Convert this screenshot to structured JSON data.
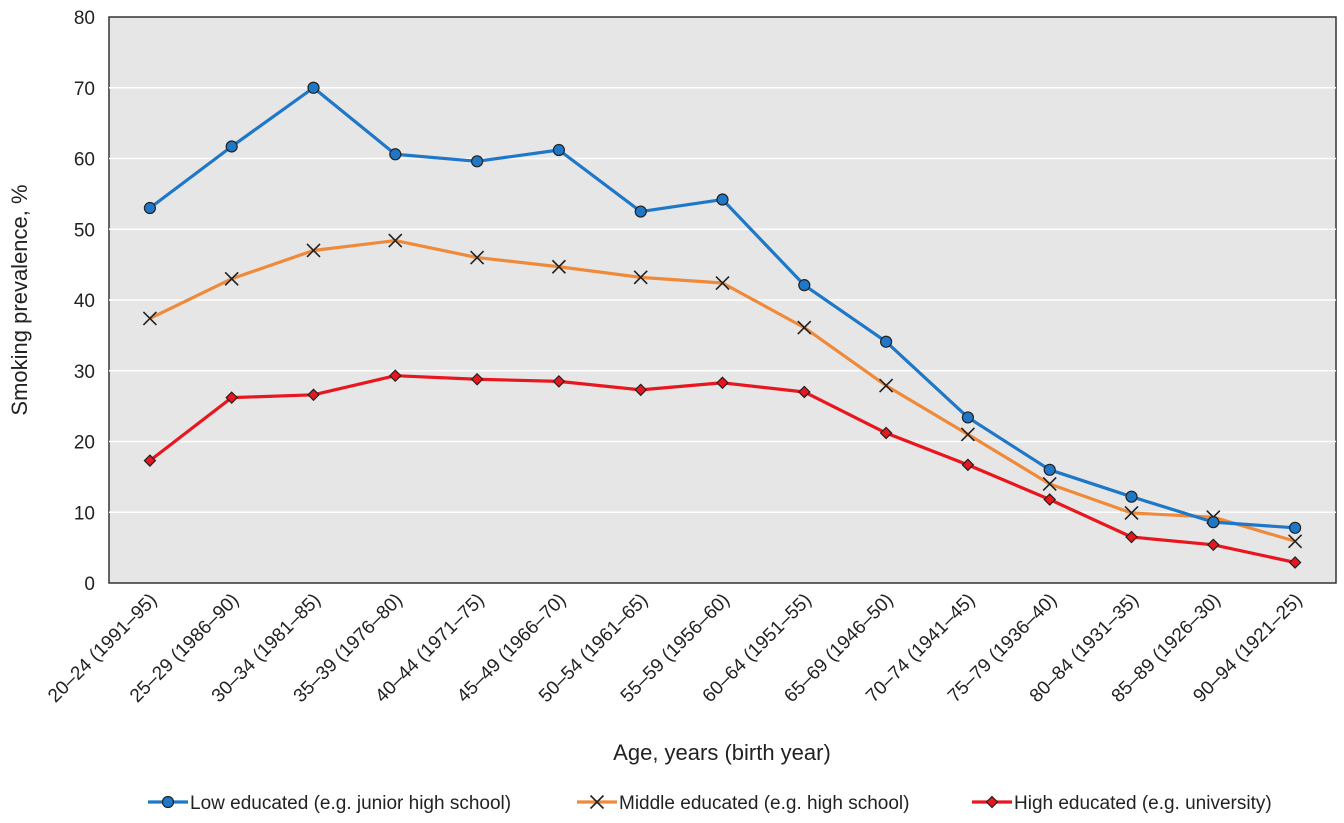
{
  "chart_data": {
    "type": "line",
    "xlabel": "Age, years (birth year)",
    "ylabel": "Smoking prevalence, %",
    "ylim": [
      0,
      80
    ],
    "yticks": [
      0,
      10,
      20,
      30,
      40,
      50,
      60,
      70,
      80
    ],
    "grid": true,
    "legend_position": "bottom",
    "plot_background": "#e6e6e6",
    "categories": [
      "20–24 (1991–95)",
      "25–29 (1986–90)",
      "30–34 (1981–85)",
      "35–39 (1976–80)",
      "40–44 (1971–75)",
      "45–49 (1966–70)",
      "50–54 (1961–65)",
      "55–59 (1956–60)",
      "60–64 (1951–55)",
      "65–69 (1946–50)",
      "70–74 (1941–45)",
      "75–79 (1936–40)",
      "80–84 (1931–35)",
      "85–89 (1926–30)",
      "90–94 (1921–25)"
    ],
    "series": [
      {
        "name": "Low educated (e.g. junior high school)",
        "color": "#1f77c8",
        "marker": "circle",
        "values": [
          53.0,
          61.7,
          70.0,
          60.6,
          59.6,
          61.2,
          52.5,
          54.2,
          42.1,
          34.1,
          23.4,
          16.0,
          12.2,
          8.6,
          7.8
        ]
      },
      {
        "name": "Middle educated (e.g. high school)",
        "color": "#ef8a3a",
        "marker": "x",
        "values": [
          37.4,
          43.0,
          47.0,
          48.4,
          46.0,
          44.7,
          43.2,
          42.4,
          36.1,
          27.9,
          21.0,
          14.0,
          9.9,
          9.3,
          5.9
        ]
      },
      {
        "name": "High educated (e.g. university)",
        "color": "#e8161e",
        "marker": "diamond",
        "values": [
          17.3,
          26.2,
          26.6,
          29.3,
          28.8,
          28.5,
          27.3,
          28.3,
          27.0,
          21.2,
          16.7,
          11.8,
          6.5,
          5.4,
          2.9
        ]
      }
    ]
  }
}
